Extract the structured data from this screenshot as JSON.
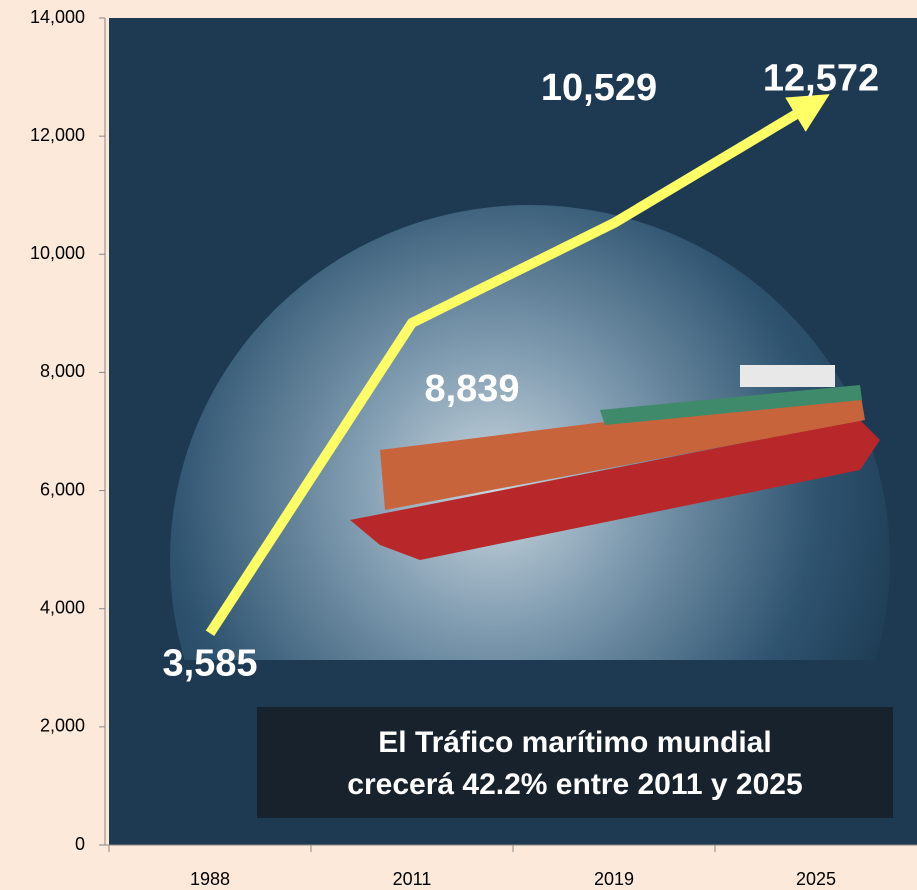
{
  "chart_data": {
    "type": "line",
    "categories": [
      "1988",
      "2011",
      "2019",
      "2025"
    ],
    "values": [
      3585,
      8839,
      10529,
      12572
    ],
    "value_labels": [
      "3,585",
      "8,839",
      "10,529",
      "12,572"
    ],
    "color": "#ffff66",
    "ylim": [
      0,
      14000
    ],
    "yticks": [
      0,
      {
        "value": 2000,
        "label": "2,000"
      },
      {
        "value": 4000,
        "label": "4,000"
      },
      {
        "value": 6000,
        "label": "6,000"
      },
      {
        "value": 8000,
        "label": "8,000"
      },
      {
        "value": 10000,
        "label": "10,000"
      },
      {
        "value": 12000,
        "label": "12,000"
      },
      {
        "value": 14000,
        "label": "14,000"
      }
    ],
    "annotation": [
      "El Tráfico marítimo mundial",
      "crecerá 42.2% entre 2011 y 2025"
    ]
  }
}
